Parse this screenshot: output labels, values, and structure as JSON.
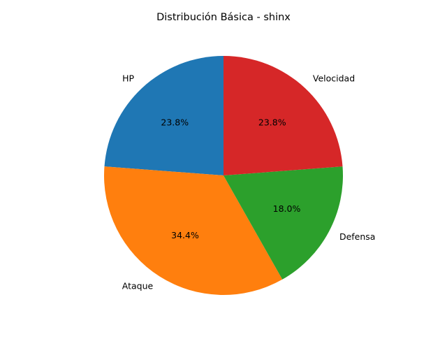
{
  "chart_data": {
    "type": "pie",
    "title": "Distribución Básica - shinx",
    "start_angle_deg": 90,
    "direction": "counterclockwise",
    "slices": [
      {
        "label": "HP",
        "value": 23.8,
        "pct_label": "23.8%",
        "color": "#1f77b4"
      },
      {
        "label": "Ataque",
        "value": 34.4,
        "pct_label": "34.4%",
        "color": "#ff7f0e"
      },
      {
        "label": "Defensa",
        "value": 18.0,
        "pct_label": "18.0%",
        "color": "#2ca02c"
      },
      {
        "label": "Velocidad",
        "value": 23.8,
        "pct_label": "23.8%",
        "color": "#d62728"
      }
    ]
  }
}
